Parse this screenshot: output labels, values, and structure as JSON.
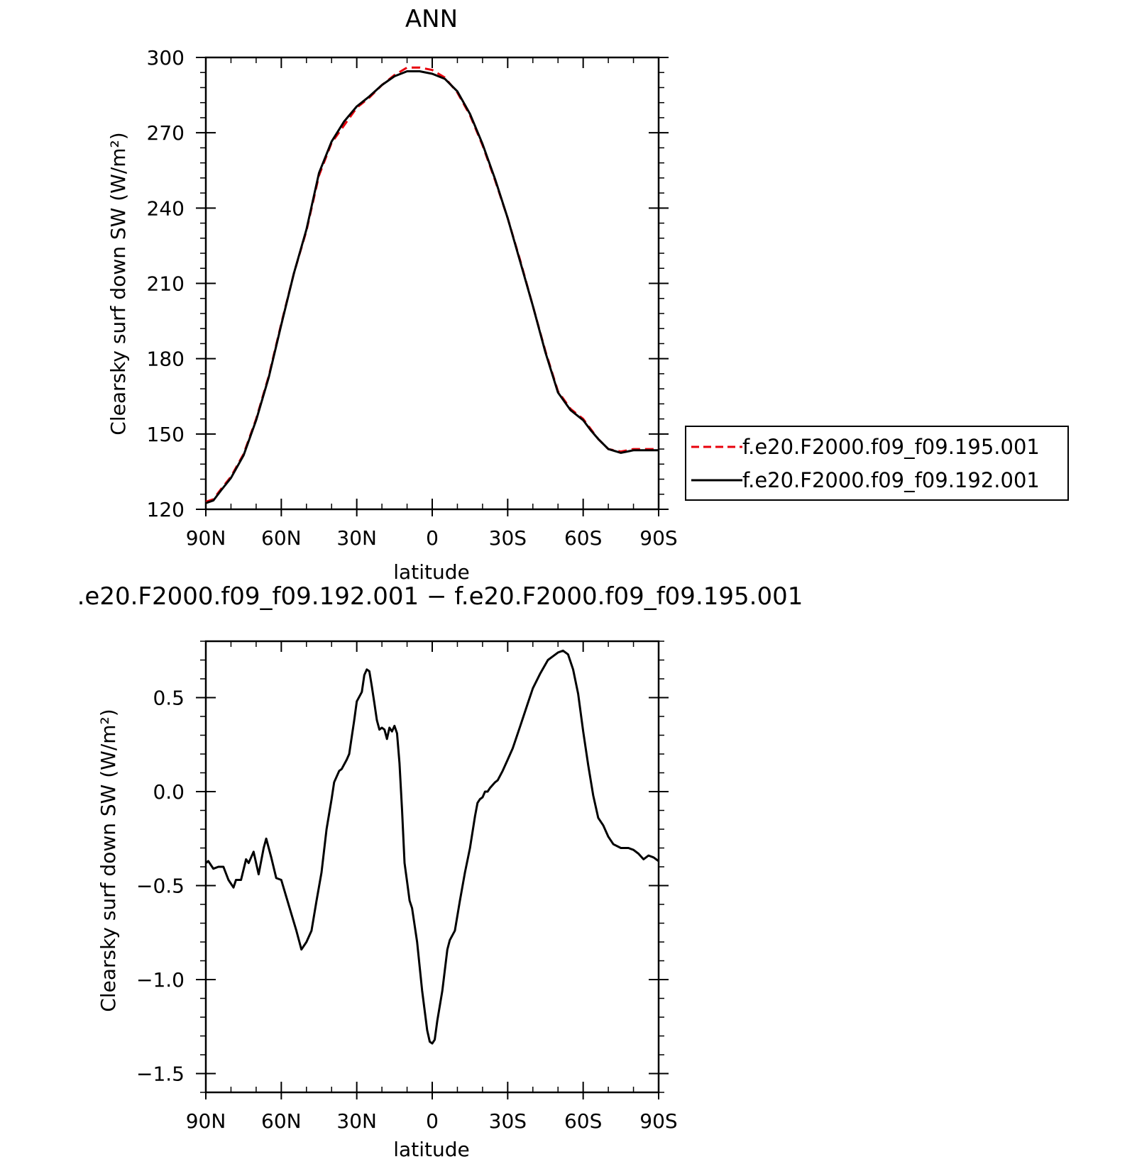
{
  "chart_data": [
    {
      "type": "line",
      "title": "ANN",
      "xlabel": "latitude",
      "ylabel": "Clearsky surf down SW (W/m²)",
      "xlim": [
        90,
        -90
      ],
      "ylim": [
        120,
        300
      ],
      "x_ticks": [
        {
          "value": 90,
          "label": "90N"
        },
        {
          "value": 60,
          "label": "60N"
        },
        {
          "value": 30,
          "label": "30N"
        },
        {
          "value": 0,
          "label": "0"
        },
        {
          "value": -30,
          "label": "30S"
        },
        {
          "value": -60,
          "label": "60S"
        },
        {
          "value": -90,
          "label": "90S"
        }
      ],
      "y_ticks": [
        {
          "value": 120,
          "label": "120"
        },
        {
          "value": 150,
          "label": "150"
        },
        {
          "value": 180,
          "label": "180"
        },
        {
          "value": 210,
          "label": "210"
        },
        {
          "value": 240,
          "label": "240"
        },
        {
          "value": 270,
          "label": "270"
        },
        {
          "value": 300,
          "label": "300"
        }
      ],
      "legend_position": "right",
      "series": [
        {
          "name": "f.e20.F2000.f09_f09.195.001",
          "color": "#e8000b",
          "dash": "dashed",
          "x": [
            90,
            87,
            84,
            80,
            75,
            70,
            65,
            60,
            55,
            50,
            45,
            40,
            35,
            30,
            25,
            20,
            15,
            10,
            5,
            0,
            -5,
            -10,
            -15,
            -20,
            -25,
            -30,
            -35,
            -40,
            -45,
            -50,
            -55,
            -60,
            -63,
            -66,
            -70,
            -75,
            -80,
            -83,
            -85,
            -87,
            -90
          ],
          "y": [
            123,
            124,
            128,
            133,
            142,
            156,
            173,
            194,
            214,
            231,
            253,
            266,
            273,
            280,
            284,
            289,
            293,
            296,
            296,
            295,
            292,
            286,
            277,
            265,
            251,
            236,
            219,
            201,
            183,
            167,
            160,
            156,
            152,
            148,
            144,
            143,
            144,
            144,
            144,
            144,
            144
          ]
        },
        {
          "name": "f.e20.F2000.f09_f09.192.001",
          "color": "#000000",
          "dash": "solid",
          "x": [
            90,
            87,
            84,
            80,
            75,
            70,
            65,
            60,
            55,
            50,
            45,
            40,
            35,
            30,
            25,
            20,
            15,
            10,
            5,
            0,
            -5,
            -10,
            -15,
            -20,
            -25,
            -30,
            -35,
            -40,
            -45,
            -50,
            -55,
            -60,
            -63,
            -66,
            -70,
            -75,
            -80,
            -83,
            -85,
            -87,
            -90
          ],
          "y": [
            122.5,
            123.5,
            127.5,
            132.5,
            141.5,
            155.5,
            172.5,
            193.5,
            214,
            231.5,
            254,
            266.5,
            274.5,
            280.5,
            284.5,
            289,
            292.5,
            294.5,
            294.5,
            293.5,
            291.5,
            286.5,
            277.5,
            265.5,
            251.5,
            236,
            218.5,
            201,
            182.5,
            166.5,
            159.5,
            155.5,
            151.5,
            148,
            144,
            142.5,
            143.5,
            143.5,
            143.5,
            143.5,
            143.5
          ]
        }
      ]
    },
    {
      "type": "line",
      "title": ".e20.F2000.f09_f09.192.001 − f.e20.F2000.f09_f09.195.001",
      "xlabel": "latitude",
      "ylabel": "Clearsky surf down SW (W/m²)",
      "xlim": [
        90,
        -90
      ],
      "ylim": [
        -1.6,
        0.8
      ],
      "x_ticks": [
        {
          "value": 90,
          "label": "90N"
        },
        {
          "value": 60,
          "label": "60N"
        },
        {
          "value": 30,
          "label": "30N"
        },
        {
          "value": 0,
          "label": "0"
        },
        {
          "value": -30,
          "label": "30S"
        },
        {
          "value": -60,
          "label": "60S"
        },
        {
          "value": -90,
          "label": "90S"
        }
      ],
      "y_ticks": [
        {
          "value": 0.5,
          "label": "0.5"
        },
        {
          "value": 0.0,
          "label": "0.0"
        },
        {
          "value": -0.5,
          "label": "−0.5"
        },
        {
          "value": -1.0,
          "label": "−1.0"
        },
        {
          "value": -1.5,
          "label": "−1.5"
        }
      ],
      "series": [
        {
          "color": "#000000",
          "dash": "solid",
          "x": [
            90,
            89,
            87,
            85,
            83,
            81,
            79,
            78,
            76,
            74,
            73,
            71,
            69,
            67,
            66,
            64,
            62,
            60,
            58,
            56,
            54,
            52,
            50,
            48,
            46,
            44,
            42,
            40,
            39,
            37,
            36,
            34,
            33,
            31,
            30,
            28,
            27,
            26,
            25,
            24,
            23,
            22,
            21,
            20,
            19,
            18,
            17,
            16,
            15,
            14,
            13,
            12,
            11,
            10,
            9,
            8,
            6,
            4,
            2,
            1,
            0,
            -1,
            -2,
            -4,
            -6,
            -7,
            -9,
            -11,
            -13,
            -15,
            -17,
            -18,
            -19,
            -20,
            -21,
            -22,
            -23,
            -25,
            -26,
            -28,
            -30,
            -32,
            -35,
            -38,
            -40,
            -43,
            -46,
            -48,
            -50,
            -52,
            -54,
            -56,
            -58,
            -60,
            -62,
            -64,
            -66,
            -68,
            -70,
            -72,
            -75,
            -78,
            -80,
            -82,
            -84,
            -86,
            -88,
            -90
          ],
          "y": [
            -0.38,
            -0.37,
            -0.41,
            -0.4,
            -0.4,
            -0.47,
            -0.51,
            -0.47,
            -0.47,
            -0.36,
            -0.38,
            -0.32,
            -0.44,
            -0.3,
            -0.25,
            -0.35,
            -0.46,
            -0.47,
            -0.56,
            -0.65,
            -0.74,
            -0.84,
            -0.8,
            -0.74,
            -0.58,
            -0.43,
            -0.2,
            -0.04,
            0.05,
            0.11,
            0.12,
            0.17,
            0.2,
            0.38,
            0.48,
            0.53,
            0.62,
            0.65,
            0.64,
            0.56,
            0.47,
            0.38,
            0.33,
            0.34,
            0.33,
            0.28,
            0.34,
            0.32,
            0.35,
            0.31,
            0.15,
            -0.1,
            -0.38,
            -0.48,
            -0.58,
            -0.62,
            -0.8,
            -1.06,
            -1.27,
            -1.33,
            -1.34,
            -1.32,
            -1.22,
            -1.06,
            -0.84,
            -0.79,
            -0.74,
            -0.58,
            -0.43,
            -0.3,
            -0.13,
            -0.06,
            -0.04,
            -0.03,
            0.0,
            0.0,
            0.02,
            0.05,
            0.06,
            0.11,
            0.17,
            0.23,
            0.35,
            0.47,
            0.55,
            0.63,
            0.7,
            0.72,
            0.74,
            0.75,
            0.73,
            0.65,
            0.52,
            0.32,
            0.14,
            -0.02,
            -0.14,
            -0.18,
            -0.24,
            -0.28,
            -0.3,
            -0.3,
            -0.31,
            -0.33,
            -0.36,
            -0.34,
            -0.35,
            -0.37
          ]
        }
      ]
    }
  ]
}
